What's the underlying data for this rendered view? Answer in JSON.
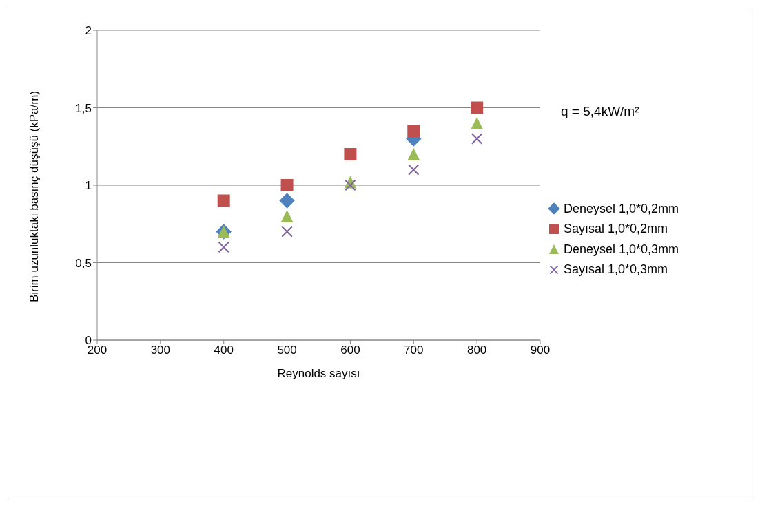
{
  "chart_data": {
    "type": "scatter",
    "xlabel": "Reynolds sayısı",
    "ylabel": "Birim uzunluktaki basınç düşüşü (kPa/m)",
    "annotations": [
      "q = 5,4kW/m²"
    ],
    "x": [
      400,
      500,
      600,
      700,
      800
    ],
    "xlim": [
      200,
      900
    ],
    "xticks": [
      200,
      300,
      400,
      500,
      600,
      700,
      800,
      900
    ],
    "ylim": [
      0,
      2
    ],
    "yticks": [
      {
        "value": 0,
        "label": "0"
      },
      {
        "value": 0.5,
        "label": "0,5"
      },
      {
        "value": 1,
        "label": "1"
      },
      {
        "value": 1.5,
        "label": "1,5"
      },
      {
        "value": 2,
        "label": "2"
      }
    ],
    "grid": "y",
    "legend": "right",
    "series": [
      {
        "name": "Deneysel 1,0*0,2mm",
        "color": "#4f81bd",
        "marker": "diamond",
        "values": [
          0.7,
          0.9,
          null,
          1.3,
          null
        ]
      },
      {
        "name": "Sayısal 1,0*0,2mm",
        "color": "#c0504d",
        "marker": "square",
        "values": [
          0.9,
          1.0,
          1.2,
          1.35,
          1.5
        ]
      },
      {
        "name": "Deneysel 1,0*0,3mm",
        "color": "#9bbb59",
        "marker": "triangle",
        "values": [
          0.7,
          0.8,
          1.02,
          1.2,
          1.4
        ]
      },
      {
        "name": "Sayısal 1,0*0,3mm",
        "color": "#8064a2",
        "marker": "cross",
        "values": [
          0.6,
          0.7,
          1.0,
          1.1,
          1.3
        ]
      }
    ]
  }
}
